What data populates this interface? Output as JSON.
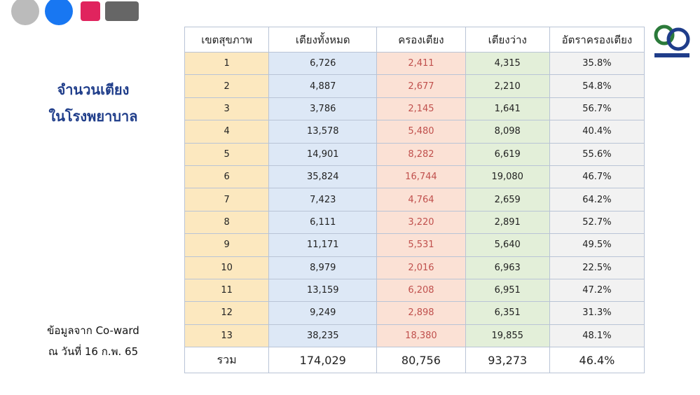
{
  "title": [
    "จำนวนเตียง",
    "ในโรงพยาบาล"
  ],
  "source": [
    "ข้อมูลจาก Co-ward",
    "ณ วันที่ 16 ก.พ. 65"
  ],
  "table": {
    "header": [
      "เขตสุขภาพ",
      "เตียงทั้งหมด",
      "ครองเตียง",
      "เตียงว่าง",
      "อัตราครองเตียง"
    ],
    "rows": [
      [
        "1",
        "6,726",
        "2,411",
        "4,315",
        "35.8%"
      ],
      [
        "2",
        "4,887",
        "2,677",
        "2,210",
        "54.8%"
      ],
      [
        "3",
        "3,786",
        "2,145",
        "1,641",
        "56.7%"
      ],
      [
        "4",
        "13,578",
        "5,480",
        "8,098",
        "40.4%"
      ],
      [
        "5",
        "14,901",
        "8,282",
        "6,619",
        "55.6%"
      ],
      [
        "6",
        "35,824",
        "16,744",
        "19,080",
        "46.7%"
      ],
      [
        "7",
        "7,423",
        "4,764",
        "2,659",
        "64.2%"
      ],
      [
        "8",
        "6,111",
        "3,220",
        "2,891",
        "52.7%"
      ],
      [
        "9",
        "11,171",
        "5,531",
        "5,640",
        "49.5%"
      ],
      [
        "10",
        "8,979",
        "2,016",
        "6,963",
        "22.5%"
      ],
      [
        "11",
        "13,159",
        "6,208",
        "6,951",
        "47.2%"
      ],
      [
        "12",
        "9,249",
        "2,898",
        "6,351",
        "31.3%"
      ],
      [
        "13",
        "38,235",
        "18,380",
        "19,855",
        "48.1%"
      ]
    ],
    "total": [
      "รวม",
      "174,029",
      "80,756",
      "93,273",
      "46.4%"
    ]
  }
}
